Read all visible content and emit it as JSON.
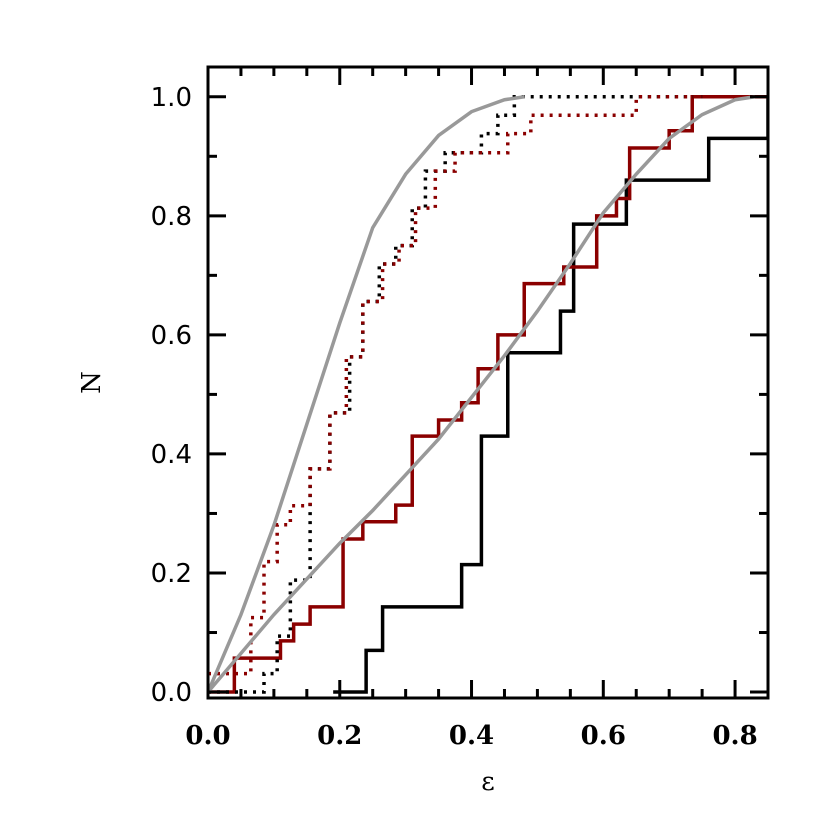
{
  "chart_data": {
    "type": "line",
    "xlabel": "ε",
    "ylabel": "N",
    "xlim": [
      0,
      0.85
    ],
    "ylim": [
      -0.01,
      1.05
    ],
    "x_ticks": [
      0.0,
      0.2,
      0.4,
      0.6,
      0.8
    ],
    "x_tick_labels": [
      "0.0",
      "0.2",
      "0.4",
      "0.6",
      "0.8"
    ],
    "y_ticks": [
      0.0,
      0.2,
      0.4,
      0.6,
      0.8,
      1.0
    ],
    "y_tick_labels": [
      "0.0",
      "0.2",
      "0.4",
      "0.6",
      "0.8",
      "1.0"
    ],
    "grid": false,
    "legend": "none",
    "series": [
      {
        "style": "step-solid",
        "color": "#000000",
        "x": [
          0.19,
          0.24,
          0.265,
          0.385,
          0.415,
          0.455,
          0.535,
          0.555,
          0.635,
          0.76,
          0.85
        ],
        "y": [
          0.0,
          0.07,
          0.143,
          0.214,
          0.43,
          0.57,
          0.64,
          0.786,
          0.86,
          0.93,
          1.0
        ]
      },
      {
        "style": "step-solid",
        "color": "#8b0000",
        "x": [
          0.0,
          0.04,
          0.11,
          0.13,
          0.155,
          0.205,
          0.235,
          0.285,
          0.31,
          0.35,
          0.385,
          0.41,
          0.44,
          0.48,
          0.54,
          0.59,
          0.62,
          0.64,
          0.7,
          0.735,
          0.76,
          0.85
        ],
        "y": [
          0.0,
          0.057,
          0.086,
          0.114,
          0.143,
          0.257,
          0.286,
          0.314,
          0.43,
          0.457,
          0.486,
          0.543,
          0.6,
          0.686,
          0.714,
          0.8,
          0.829,
          0.914,
          0.943,
          1.0,
          1.0,
          1.0
        ]
      },
      {
        "style": "step-dotted",
        "color": "#000000",
        "x": [
          0.0,
          0.05,
          0.085,
          0.105,
          0.125,
          0.155,
          0.185,
          0.215,
          0.235,
          0.26,
          0.285,
          0.31,
          0.33,
          0.36,
          0.385,
          0.415,
          0.44,
          0.465,
          0.48,
          0.5,
          0.76
        ],
        "y": [
          0.0,
          0.0,
          0.031,
          0.094,
          0.188,
          0.375,
          0.469,
          0.563,
          0.656,
          0.719,
          0.75,
          0.813,
          0.875,
          0.906,
          0.906,
          0.938,
          0.969,
          1.0,
          1.0,
          1.0,
          1.0
        ]
      },
      {
        "style": "step-dotted",
        "color": "#8b0000",
        "x": [
          0.0,
          0.04,
          0.065,
          0.085,
          0.105,
          0.125,
          0.155,
          0.185,
          0.21,
          0.235,
          0.265,
          0.29,
          0.315,
          0.345,
          0.375,
          0.405,
          0.43,
          0.455,
          0.49,
          0.65,
          0.76
        ],
        "y": [
          0.031,
          0.031,
          0.125,
          0.219,
          0.281,
          0.313,
          0.375,
          0.469,
          0.563,
          0.656,
          0.719,
          0.75,
          0.813,
          0.875,
          0.906,
          0.906,
          0.906,
          0.938,
          0.969,
          1.0,
          1.0
        ]
      },
      {
        "style": "smooth",
        "color": "#999999",
        "x": [
          0.0,
          0.05,
          0.1,
          0.15,
          0.2,
          0.25,
          0.3,
          0.35,
          0.4,
          0.45,
          0.5,
          0.55,
          0.6,
          0.65,
          0.7,
          0.75,
          0.8,
          0.83
        ],
        "y": [
          0.0,
          0.065,
          0.13,
          0.19,
          0.25,
          0.305,
          0.365,
          0.425,
          0.495,
          0.565,
          0.64,
          0.72,
          0.805,
          0.87,
          0.93,
          0.97,
          0.995,
          1.0
        ]
      },
      {
        "style": "smooth",
        "color": "#999999",
        "x": [
          0.0,
          0.05,
          0.1,
          0.15,
          0.2,
          0.25,
          0.3,
          0.35,
          0.4,
          0.45,
          0.48
        ],
        "y": [
          0.0,
          0.13,
          0.28,
          0.45,
          0.62,
          0.78,
          0.87,
          0.935,
          0.975,
          0.995,
          1.0
        ]
      }
    ]
  }
}
